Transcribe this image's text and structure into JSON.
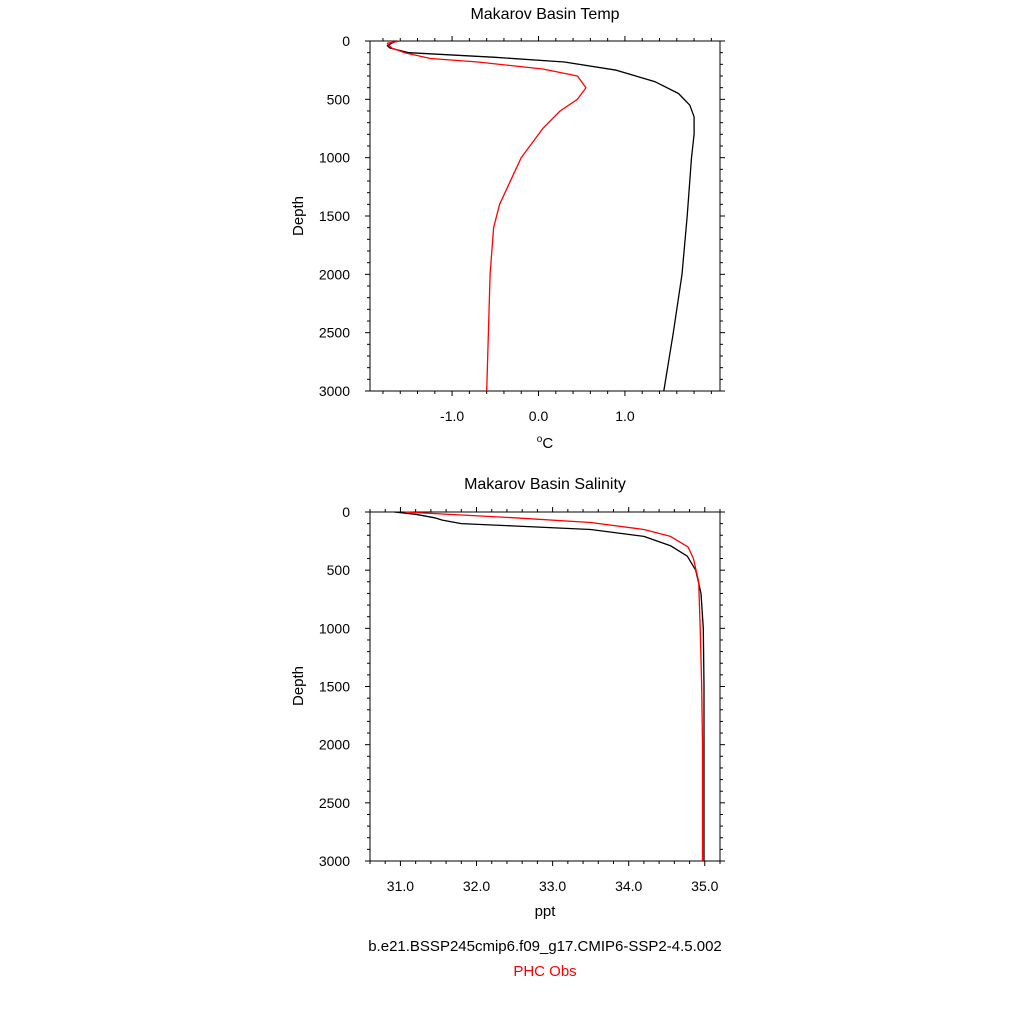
{
  "chart_data": [
    {
      "type": "line",
      "title": "Makarov Basin Temp",
      "xlabel_base": "o",
      "xlabel_unit": "C",
      "ylabel": "Depth",
      "xlim": [
        -1.95,
        2.1
      ],
      "ylim": [
        0,
        3000
      ],
      "y_inverted": true,
      "x_ticks": [
        -1.0,
        0.0,
        1.0
      ],
      "x_tick_labels": [
        "-1.0",
        "0.0",
        "1.0"
      ],
      "x_minor_step": 0.2,
      "y_ticks": [
        0,
        500,
        1000,
        1500,
        2000,
        2500,
        3000
      ],
      "y_tick_labels": [
        "0",
        "500",
        "1000",
        "1500",
        "2000",
        "2500",
        "3000"
      ],
      "y_minor_step": 100,
      "series": [
        {
          "color": "#000000",
          "points": [
            [
              -1.65,
              0
            ],
            [
              -1.7,
              20
            ],
            [
              -1.75,
              40
            ],
            [
              -1.72,
              60
            ],
            [
              -1.5,
              100
            ],
            [
              -0.5,
              140
            ],
            [
              0.3,
              180
            ],
            [
              0.9,
              250
            ],
            [
              1.35,
              350
            ],
            [
              1.62,
              450
            ],
            [
              1.75,
              550
            ],
            [
              1.8,
              650
            ],
            [
              1.8,
              800
            ],
            [
              1.77,
              1000
            ],
            [
              1.72,
              1500
            ],
            [
              1.66,
              2000
            ],
            [
              1.56,
              2500
            ],
            [
              1.45,
              3000
            ]
          ]
        },
        {
          "color": "#ff0000",
          "points": [
            [
              -1.6,
              0
            ],
            [
              -1.75,
              20
            ],
            [
              -1.7,
              60
            ],
            [
              -1.55,
              100
            ],
            [
              -1.25,
              150
            ],
            [
              -0.7,
              180
            ],
            [
              0.05,
              240
            ],
            [
              0.45,
              300
            ],
            [
              0.55,
              400
            ],
            [
              0.45,
              500
            ],
            [
              0.25,
              600
            ],
            [
              0.05,
              750
            ],
            [
              -0.2,
              1000
            ],
            [
              -0.45,
              1400
            ],
            [
              -0.52,
              1600
            ],
            [
              -0.56,
              2000
            ],
            [
              -0.6,
              3000
            ]
          ]
        }
      ]
    },
    {
      "type": "line",
      "title": "Makarov Basin Salinity",
      "xlabel": "ppt",
      "ylabel": "Depth",
      "xlim": [
        30.6,
        35.2
      ],
      "ylim": [
        0,
        3000
      ],
      "y_inverted": true,
      "x_ticks": [
        31.0,
        32.0,
        33.0,
        34.0,
        35.0
      ],
      "x_tick_labels": [
        "31.0",
        "32.0",
        "33.0",
        "34.0",
        "35.0"
      ],
      "x_minor_step": 0.2,
      "y_ticks": [
        0,
        500,
        1000,
        1500,
        2000,
        2500,
        3000
      ],
      "y_tick_labels": [
        "0",
        "500",
        "1000",
        "1500",
        "2000",
        "2500",
        "3000"
      ],
      "y_minor_step": 100,
      "series": [
        {
          "color": "#000000",
          "points": [
            [
              30.92,
              0
            ],
            [
              31.2,
              20
            ],
            [
              31.45,
              50
            ],
            [
              31.55,
              70
            ],
            [
              31.8,
              100
            ],
            [
              32.5,
              120
            ],
            [
              33.5,
              150
            ],
            [
              34.2,
              210
            ],
            [
              34.55,
              290
            ],
            [
              34.77,
              380
            ],
            [
              34.88,
              500
            ],
            [
              34.95,
              700
            ],
            [
              34.98,
              1000
            ],
            [
              34.99,
              1500
            ],
            [
              34.99,
              3000
            ]
          ]
        },
        {
          "color": "#ff0000",
          "points": [
            [
              31.05,
              0
            ],
            [
              32.5,
              50
            ],
            [
              33.5,
              90
            ],
            [
              34.2,
              150
            ],
            [
              34.55,
              210
            ],
            [
              34.78,
              300
            ],
            [
              34.85,
              400
            ],
            [
              34.92,
              600
            ],
            [
              34.94,
              1000
            ],
            [
              34.96,
              1500
            ],
            [
              34.97,
              2000
            ],
            [
              34.97,
              3000
            ]
          ]
        }
      ]
    }
  ],
  "legend": {
    "model_label": "b.e21.BSSP245cmip6.f09_g17.CMIP6-SSP2-4.5.002",
    "obs_label": "PHC Obs",
    "model_color": "#000000",
    "obs_color": "#ff0000"
  }
}
